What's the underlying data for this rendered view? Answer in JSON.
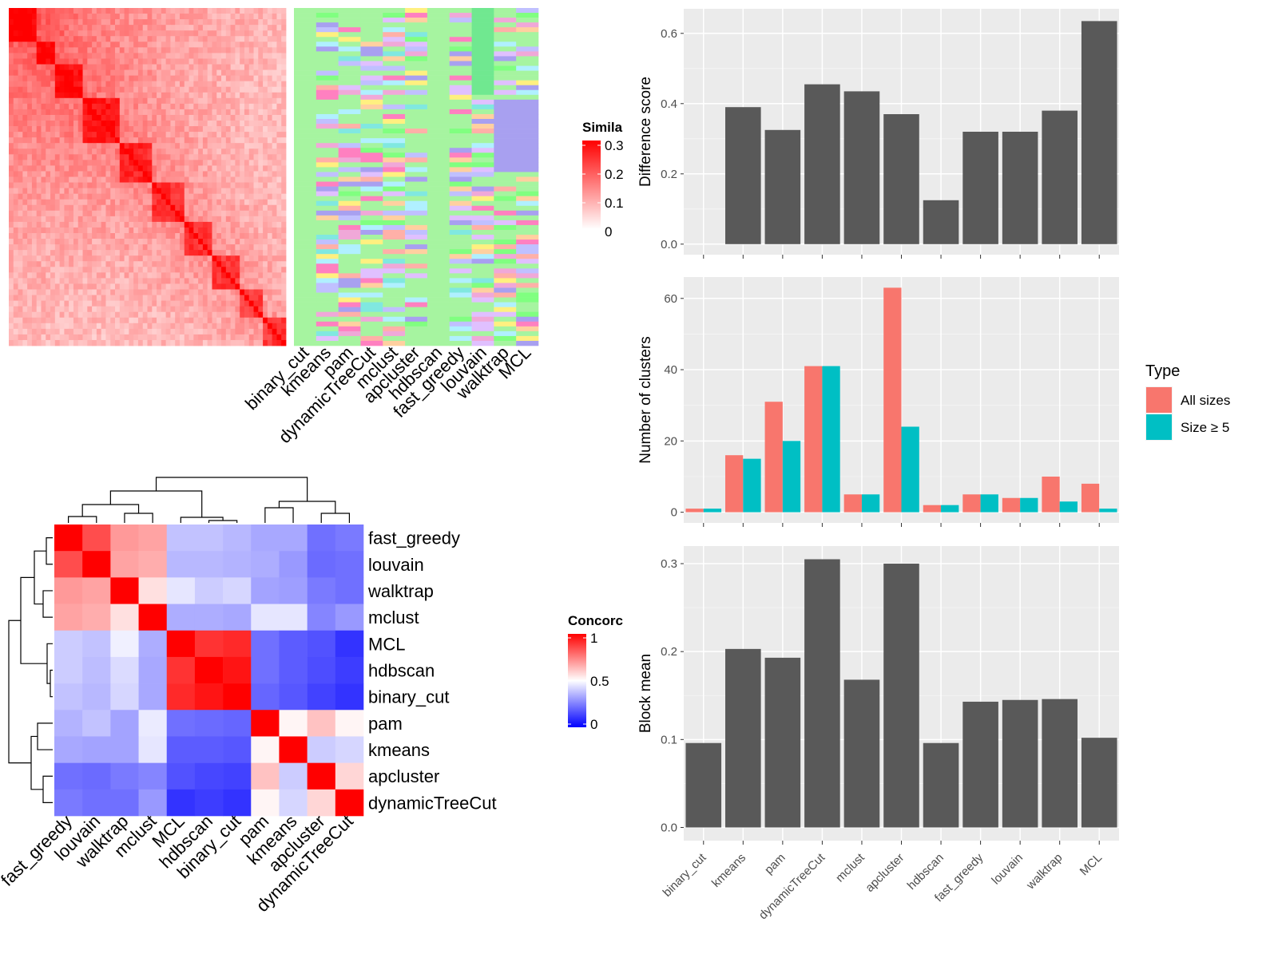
{
  "chart_data": [
    {
      "type": "heatmap",
      "panel": "similarity-heatmap-with-cluster-annotations",
      "methods": [
        "binary_cut",
        "kmeans",
        "pam",
        "dynamicTreeCut",
        "mclust",
        "apcluster",
        "hdbscan",
        "fast_greedy",
        "louvain",
        "walktrap",
        "MCL"
      ],
      "legend_title": "Similarity",
      "legend_title_visible": "Simila",
      "legend_ticks": [
        "0.3",
        "0.2",
        "0.1",
        "0"
      ],
      "legend_range": [
        0,
        0.3
      ],
      "colors": {
        "low": "#ffffff",
        "high": "#ff0000"
      }
    },
    {
      "type": "heatmap",
      "panel": "concordance-heatmap",
      "legend_title": "Concordance",
      "legend_title_visible": "Concorc",
      "legend_ticks": [
        "1",
        "0.5",
        "0"
      ],
      "legend_range": [
        0,
        1
      ],
      "colors": {
        "low": "#0000ff",
        "mid": "#ffffff",
        "high": "#ff0000"
      },
      "rows": [
        "fast_greedy",
        "louvain",
        "walktrap",
        "mclust",
        "MCL",
        "hdbscan",
        "binary_cut",
        "pam",
        "kmeans",
        "apcluster",
        "dynamicTreeCut"
      ],
      "cols": [
        "fast_greedy",
        "louvain",
        "walktrap",
        "mclust",
        "MCL",
        "hdbscan",
        "binary_cut",
        "pam",
        "kmeans",
        "apcluster",
        "dynamicTreeCut"
      ],
      "values": [
        [
          1.0,
          0.85,
          0.7,
          0.68,
          0.38,
          0.38,
          0.36,
          0.33,
          0.33,
          0.22,
          0.24
        ],
        [
          0.85,
          1.0,
          0.68,
          0.66,
          0.36,
          0.36,
          0.35,
          0.34,
          0.3,
          0.21,
          0.22
        ],
        [
          0.7,
          0.68,
          1.0,
          0.56,
          0.45,
          0.4,
          0.42,
          0.32,
          0.31,
          0.24,
          0.22
        ],
        [
          0.68,
          0.66,
          0.56,
          1.0,
          0.34,
          0.34,
          0.33,
          0.45,
          0.45,
          0.26,
          0.3
        ],
        [
          0.4,
          0.38,
          0.47,
          0.34,
          1.0,
          0.9,
          0.92,
          0.22,
          0.18,
          0.16,
          0.1
        ],
        [
          0.4,
          0.37,
          0.43,
          0.33,
          0.9,
          1.0,
          0.96,
          0.22,
          0.18,
          0.15,
          0.12
        ],
        [
          0.38,
          0.36,
          0.42,
          0.33,
          0.92,
          0.96,
          1.0,
          0.2,
          0.17,
          0.13,
          0.1
        ],
        [
          0.35,
          0.38,
          0.32,
          0.46,
          0.22,
          0.21,
          0.2,
          1.0,
          0.52,
          0.62,
          0.52
        ],
        [
          0.33,
          0.32,
          0.32,
          0.45,
          0.18,
          0.18,
          0.17,
          0.52,
          1.0,
          0.4,
          0.42
        ],
        [
          0.22,
          0.21,
          0.24,
          0.26,
          0.16,
          0.14,
          0.13,
          0.62,
          0.4,
          1.0,
          0.58
        ],
        [
          0.24,
          0.22,
          0.22,
          0.3,
          0.1,
          0.12,
          0.1,
          0.52,
          0.42,
          0.58,
          1.0
        ]
      ]
    },
    {
      "type": "bar",
      "panel": "difference-score",
      "categories": [
        "binary_cut",
        "kmeans",
        "pam",
        "dynamicTreeCut",
        "mclust",
        "apcluster",
        "hdbscan",
        "fast_greedy",
        "louvain",
        "walktrap",
        "MCL"
      ],
      "values": [
        0.0,
        0.39,
        0.325,
        0.455,
        0.435,
        0.37,
        0.125,
        0.32,
        0.32,
        0.38,
        0.635
      ],
      "xlabel": "",
      "ylabel": "Difference score",
      "yticks": [
        "0.0",
        "0.2",
        "0.4",
        "0.6"
      ],
      "ylim": [
        -0.03,
        0.67
      ]
    },
    {
      "type": "bar",
      "panel": "number-of-clusters",
      "categories": [
        "binary_cut",
        "kmeans",
        "pam",
        "dynamicTreeCut",
        "mclust",
        "apcluster",
        "hdbscan",
        "fast_greedy",
        "louvain",
        "walktrap",
        "MCL"
      ],
      "series": [
        {
          "name": "All sizes",
          "color": "#f8766d",
          "values": [
            1,
            16,
            31,
            41,
            5,
            63,
            2,
            5,
            4,
            10,
            8
          ]
        },
        {
          "name": "Size ≥ 5",
          "color": "#00bfc4",
          "values": [
            1,
            15,
            20,
            41,
            5,
            24,
            2,
            5,
            4,
            3,
            1
          ]
        }
      ],
      "ylabel": "Number of clusters",
      "yticks": [
        "0",
        "20",
        "40",
        "60"
      ],
      "ylim": [
        -3,
        66
      ],
      "legend_title": "Type",
      "legend_position": "right"
    },
    {
      "type": "bar",
      "panel": "block-mean",
      "categories": [
        "binary_cut",
        "kmeans",
        "pam",
        "dynamicTreeCut",
        "mclust",
        "apcluster",
        "hdbscan",
        "fast_greedy",
        "louvain",
        "walktrap",
        "MCL"
      ],
      "values": [
        0.096,
        0.203,
        0.193,
        0.305,
        0.168,
        0.3,
        0.096,
        0.143,
        0.145,
        0.146,
        0.102
      ],
      "ylabel": "Block mean",
      "yticks": [
        "0.0",
        "0.1",
        "0.2",
        "0.3"
      ],
      "ylim": [
        -0.015,
        0.32
      ]
    }
  ]
}
